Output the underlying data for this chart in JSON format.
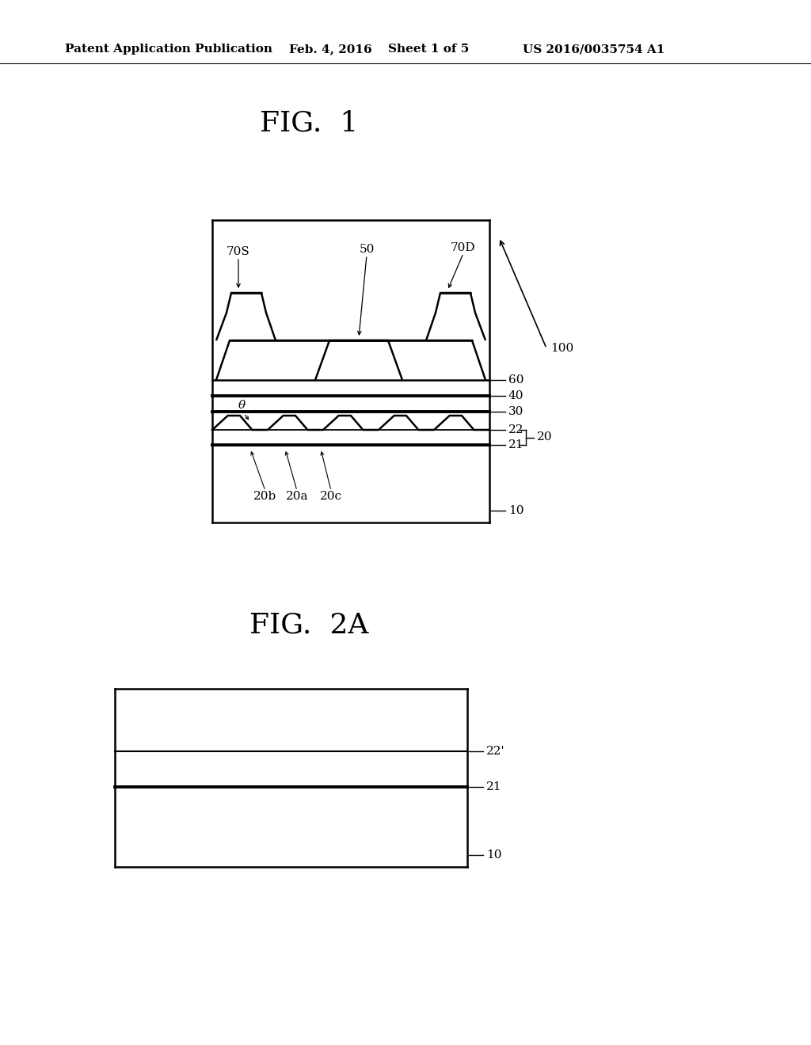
{
  "bg_color": "#ffffff",
  "fig_width": 10.24,
  "fig_height": 13.2,
  "header_text": "Patent Application Publication",
  "header_date": "Feb. 4, 2016",
  "header_sheet": "Sheet 1 of 5",
  "header_patent": "US 2016/0035754 A1",
  "fig1_title": "FIG.  1",
  "fig2a_title": "FIG.  2A"
}
